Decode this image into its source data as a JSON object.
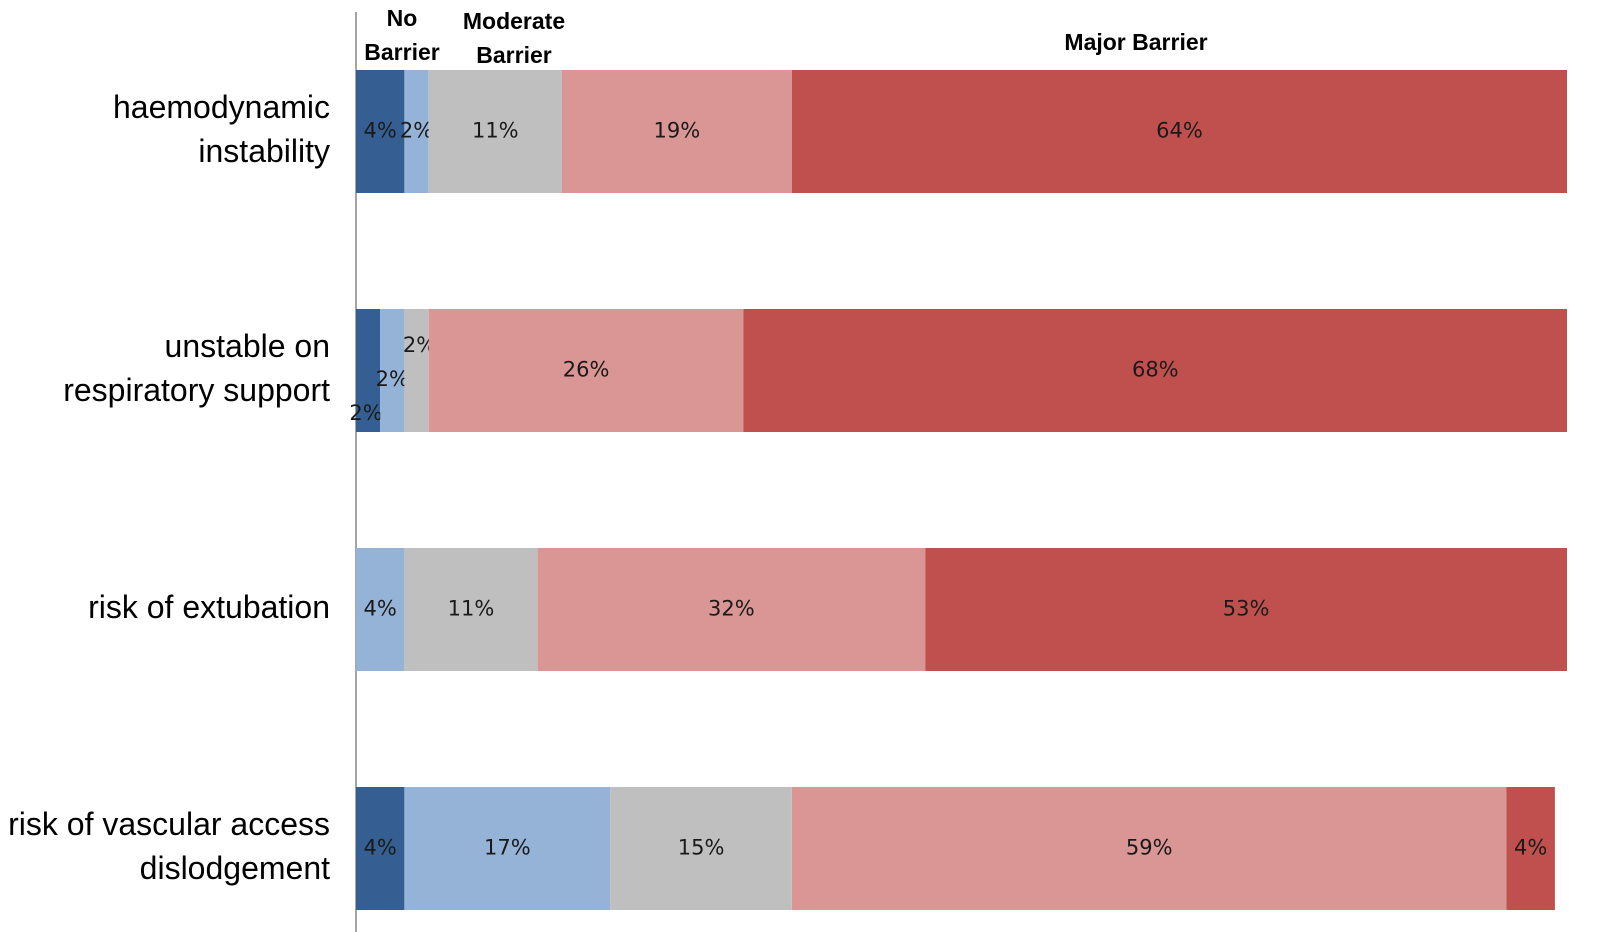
{
  "chart_data": {
    "type": "bar",
    "orientation": "horizontal",
    "stacked": true,
    "categories": [
      [
        "haemodynamic",
        "instability"
      ],
      [
        "unstable on",
        "respiratory support"
      ],
      [
        "risk of extubation"
      ],
      [
        "risk of vascular access",
        "dislodgement"
      ]
    ],
    "column_headers": [
      {
        "lines": [
          "No",
          "Barrier"
        ]
      },
      {
        "lines": [
          "Moderate",
          "Barrier"
        ]
      },
      {
        "lines": [
          "Major Barrier"
        ]
      }
    ],
    "series": [
      {
        "color": "#355f92",
        "values": [
          4,
          2,
          0,
          4
        ],
        "labels": [
          "4%",
          "2%",
          "",
          "4%"
        ]
      },
      {
        "color": "#95b3d7",
        "values": [
          2,
          2,
          4,
          17
        ],
        "labels": [
          "2%",
          "2%",
          "4%",
          "17%"
        ]
      },
      {
        "color": "#bfbfbf",
        "values": [
          11,
          2,
          11,
          15
        ],
        "labels": [
          "11%",
          "2%",
          "11%",
          "15%"
        ]
      },
      {
        "color": "#da9694",
        "values": [
          19,
          26,
          32,
          59
        ],
        "labels": [
          "19%",
          "26%",
          "32%",
          "59%"
        ]
      },
      {
        "color": "#c0504d",
        "values": [
          64,
          68,
          53,
          4
        ],
        "labels": [
          "64%",
          "68%",
          "53%",
          "4%"
        ]
      }
    ],
    "xlim": [
      0,
      100
    ],
    "grid": false,
    "legend": "none"
  }
}
